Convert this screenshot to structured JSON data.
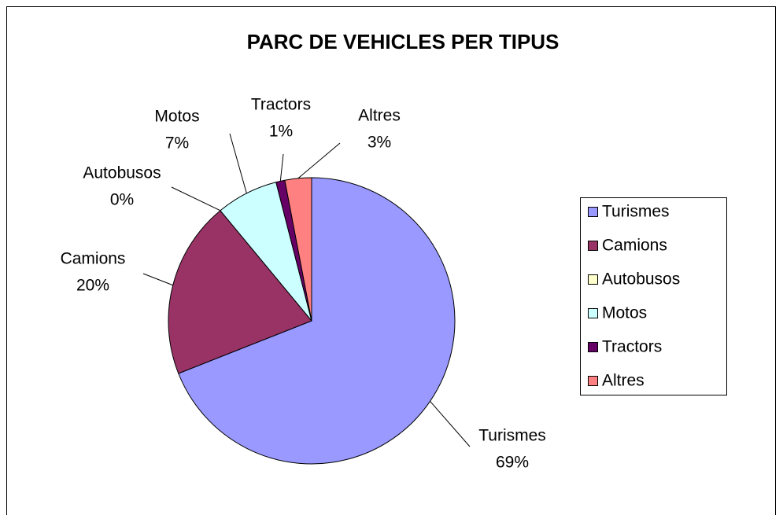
{
  "chart_data": {
    "type": "pie",
    "title": "PARC DE VEHICLES PER TIPUS",
    "categories": [
      "Turismes",
      "Camions",
      "Autobusos",
      "Motos",
      "Tractors",
      "Altres"
    ],
    "values": [
      69,
      20,
      0,
      7,
      1,
      3
    ],
    "value_labels": [
      "69%",
      "20%",
      "0%",
      "7%",
      "1%",
      "3%"
    ],
    "colors": [
      "#9999ff",
      "#993366",
      "#ffffcc",
      "#ccffff",
      "#660066",
      "#ff8080"
    ],
    "legend": "right"
  }
}
